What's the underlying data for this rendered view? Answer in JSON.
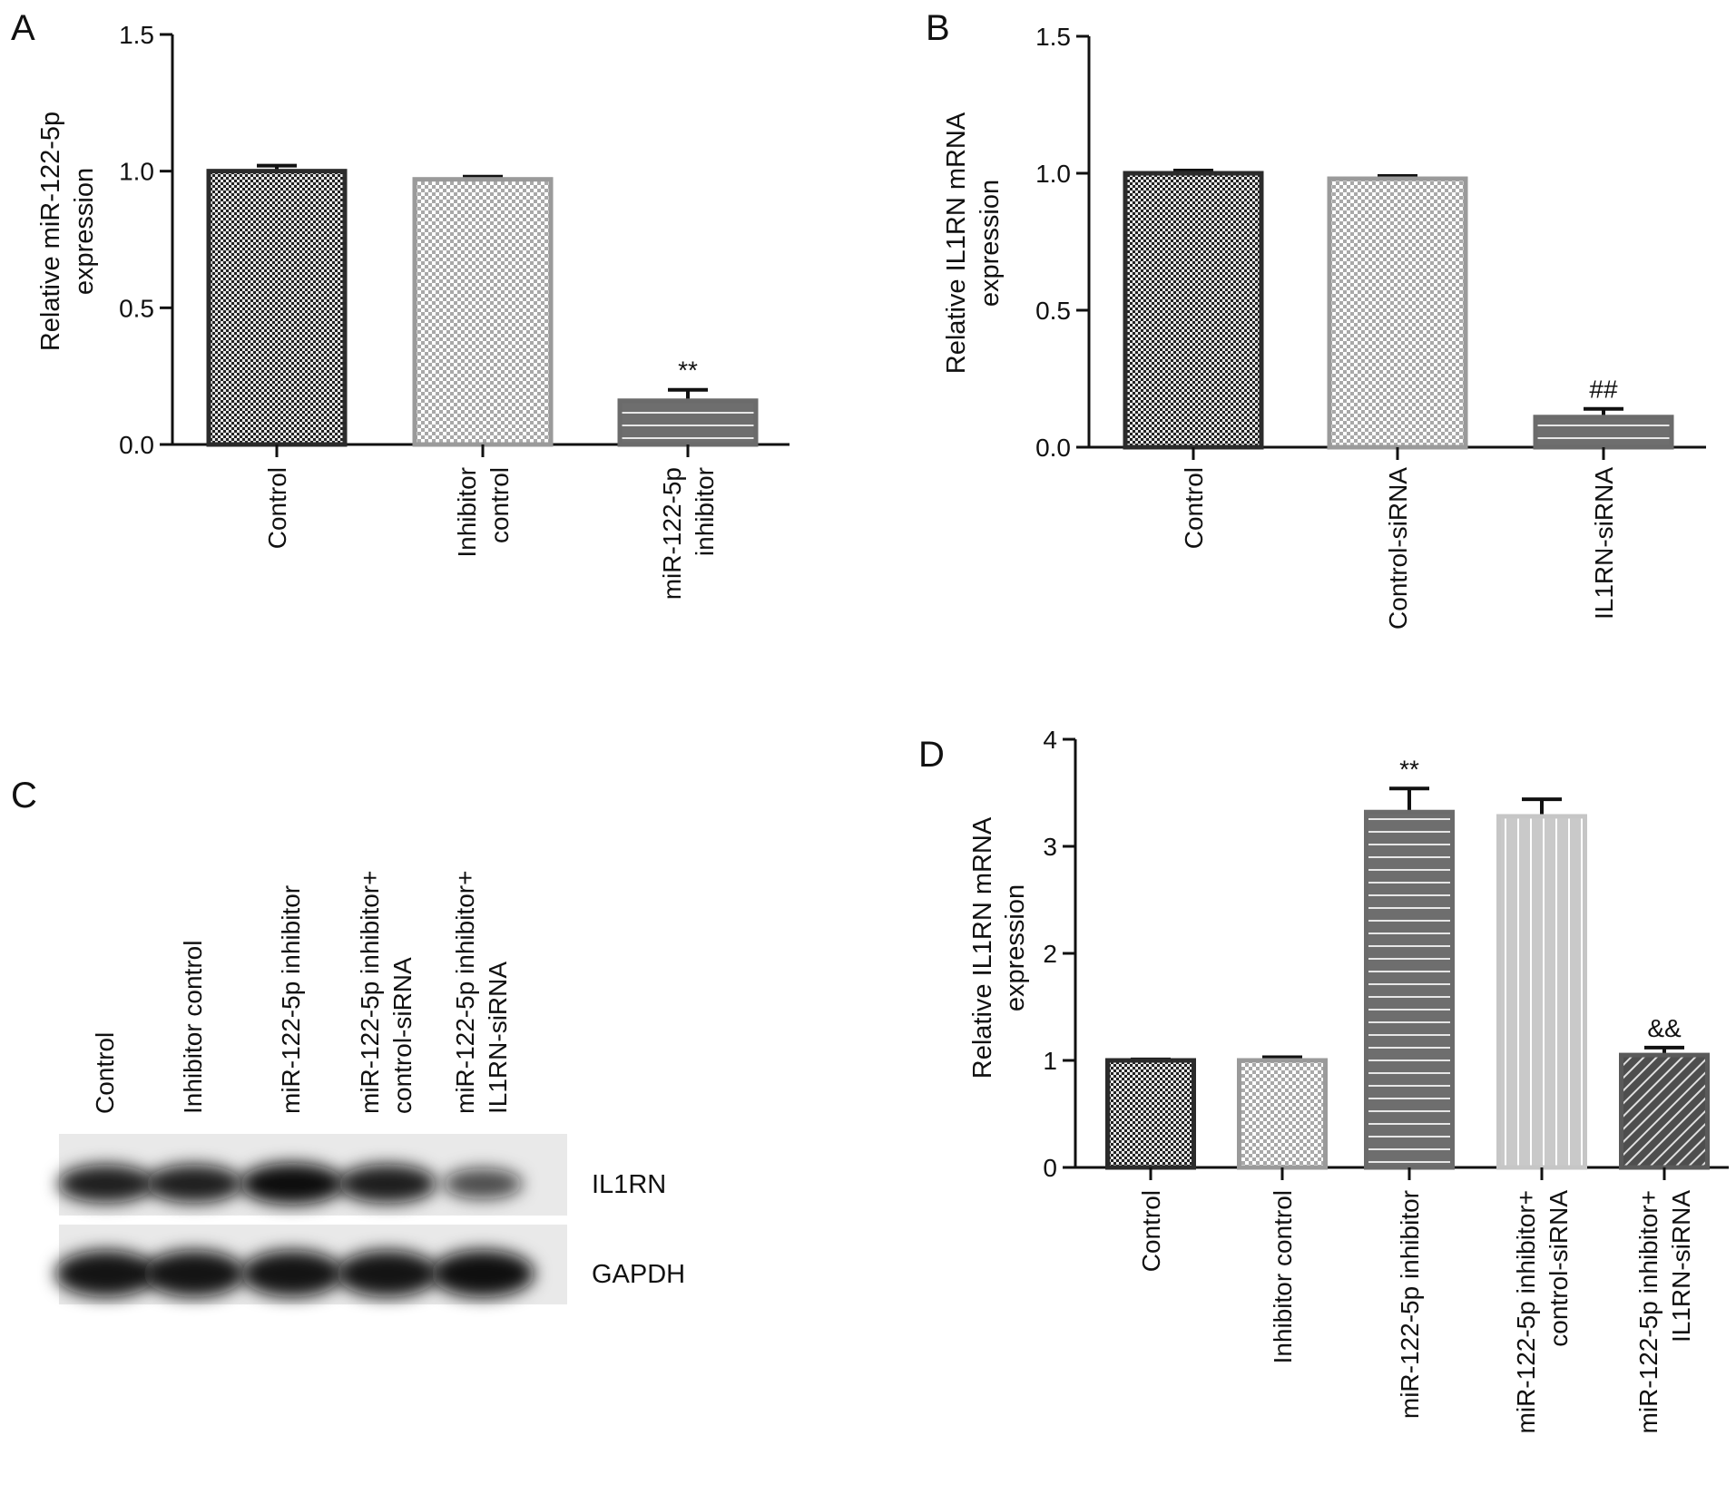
{
  "panels": {
    "A": {
      "letter": "A"
    },
    "B": {
      "letter": "B"
    },
    "C": {
      "letter": "C"
    },
    "D": {
      "letter": "D"
    }
  },
  "chart_data": [
    {
      "panel": "A",
      "type": "bar",
      "ylabel": [
        "Relative miR-122-5p",
        "expression"
      ],
      "ylim": [
        0,
        1.5
      ],
      "yticks": [
        "0.0",
        "0.5",
        "1.0",
        "1.5"
      ],
      "categories": [
        [
          "Control"
        ],
        [
          "Inhibitor",
          "control"
        ],
        [
          "miR-122-5p",
          "inhibitor"
        ]
      ],
      "values": [
        1.0,
        0.97,
        0.16
      ],
      "errors": [
        0.02,
        0.01,
        0.04
      ],
      "significance": [
        "",
        "",
        "**"
      ],
      "fill_patterns": [
        "dense-check",
        "light-check",
        "horizontal-lines"
      ],
      "colors": [
        "#2b2b2b",
        "#9a9a9a",
        "#6b6b6b"
      ]
    },
    {
      "panel": "B",
      "type": "bar",
      "ylabel": [
        "Relative IL1RN mRNA",
        "expression"
      ],
      "ylim": [
        0,
        1.5
      ],
      "yticks": [
        "0.0",
        "0.5",
        "1.0",
        "1.5"
      ],
      "categories": [
        [
          "Control"
        ],
        [
          "Control-siRNA"
        ],
        [
          "IL1RN-siRNA"
        ]
      ],
      "values": [
        1.0,
        0.98,
        0.11
      ],
      "errors": [
        0.01,
        0.01,
        0.03
      ],
      "significance": [
        "",
        "",
        "##"
      ],
      "fill_patterns": [
        "dense-check",
        "light-check",
        "horizontal-lines"
      ],
      "colors": [
        "#2b2b2b",
        "#9a9a9a",
        "#6b6b6b"
      ]
    },
    {
      "panel": "D",
      "type": "bar",
      "ylabel": [
        "Relative IL1RN mRNA",
        "expression"
      ],
      "ylim": [
        0,
        4
      ],
      "yticks": [
        "0",
        "1",
        "2",
        "3",
        "4"
      ],
      "categories": [
        [
          "Control"
        ],
        [
          "Inhibitor control"
        ],
        [
          "miR-122-5p inhibitor"
        ],
        [
          "miR-122-5p inhibitor+",
          "control-siRNA"
        ],
        [
          "miR-122-5p inhibitor+",
          "IL1RN-siRNA"
        ]
      ],
      "values": [
        1.0,
        1.0,
        3.32,
        3.28,
        1.05
      ],
      "errors": [
        0.01,
        0.03,
        0.22,
        0.16,
        0.07
      ],
      "significance": [
        "",
        "",
        "**",
        "",
        "&&"
      ],
      "fill_patterns": [
        "dense-check",
        "light-check",
        "horizontal-lines",
        "vertical-lines",
        "diagonal-lines"
      ],
      "colors": [
        "#2b2b2b",
        "#9a9a9a",
        "#6b6b6b",
        "#c6c6c6",
        "#5a5a5a"
      ]
    }
  ],
  "western_blot": {
    "lanes": [
      [
        "Control"
      ],
      [
        "Inhibitor control"
      ],
      [
        "miR-122-5p inhibitor"
      ],
      [
        "miR-122-5p inhibitor+",
        "control-siRNA"
      ],
      [
        "miR-122-5p inhibitor+",
        "IL1RN-siRNA"
      ]
    ],
    "bands": [
      {
        "label": "IL1RN",
        "intensity": [
          0.85,
          0.85,
          1.0,
          0.88,
          0.5
        ]
      },
      {
        "label": "GAPDH",
        "intensity": [
          0.95,
          0.95,
          0.95,
          0.95,
          0.98
        ]
      }
    ]
  }
}
